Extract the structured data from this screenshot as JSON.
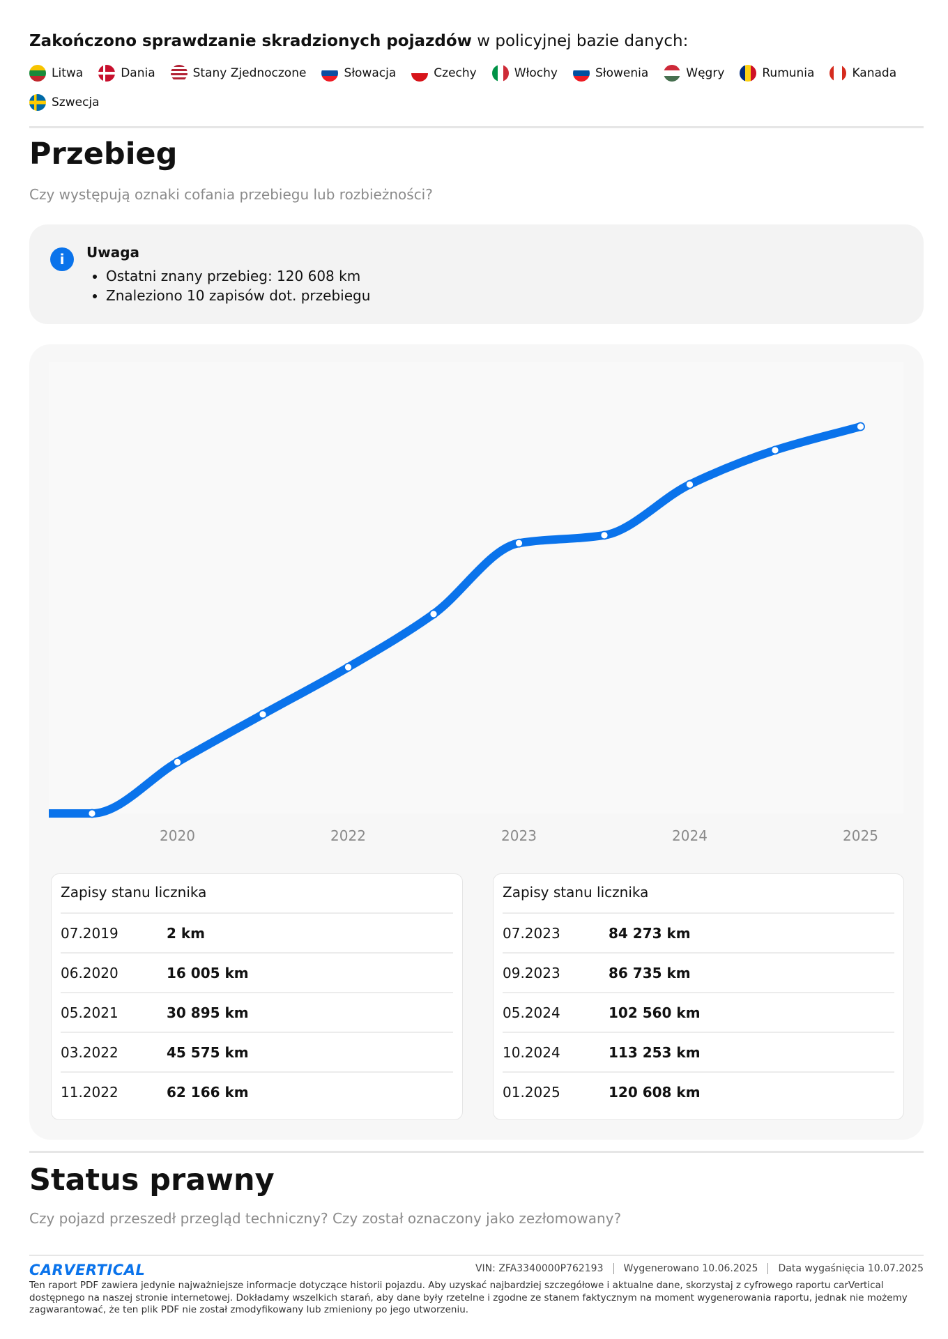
{
  "header": {
    "title_bold": "Zakończono sprawdzanie skradzionych pojazdów",
    "title_rest": " w policyjnej bazie danych:",
    "countries": [
      "Litwa",
      "Dania",
      "Stany Zjednoczone",
      "Słowacja",
      "Czechy",
      "Włochy",
      "Słowenia",
      "Węgry",
      "Rumunia",
      "Kanada",
      "Szwecja"
    ]
  },
  "mileage": {
    "title": "Przebieg",
    "subtitle": "Czy występują oznaki cofania przebiegu lub rozbieżności?",
    "note": {
      "title": "Uwaga",
      "items": [
        "Ostatni znany przebieg: 120 608 km",
        "Znaleziono 10 zapisów dot. przebiegu"
      ]
    }
  },
  "chart_data": {
    "type": "line",
    "categories": [
      null,
      "2020",
      null,
      "2022",
      null,
      "2023",
      null,
      "2024",
      null,
      "2025"
    ],
    "series": [
      {
        "color": "#0a73eb",
        "values": [
          2,
          16005,
          30895,
          45575,
          62166,
          84273,
          86735,
          102560,
          113253,
          120608
        ]
      }
    ]
  },
  "tables": [
    {
      "title": "Zapisy stanu licznika",
      "rows": [
        [
          "07.2019",
          "2 km"
        ],
        [
          "06.2020",
          "16 005 km"
        ],
        [
          "05.2021",
          "30 895 km"
        ],
        [
          "03.2022",
          "45 575 km"
        ],
        [
          "11.2022",
          "62 166 km"
        ]
      ]
    },
    {
      "title": "Zapisy stanu licznika",
      "rows": [
        [
          "07.2023",
          "84 273 km"
        ],
        [
          "09.2023",
          "86 735 km"
        ],
        [
          "05.2024",
          "102 560 km"
        ],
        [
          "10.2024",
          "113 253 km"
        ],
        [
          "01.2025",
          "120 608 km"
        ]
      ]
    }
  ],
  "legal": {
    "title": "Status prawny",
    "subtitle": "Czy pojazd przeszedł przegląd techniczny? Czy został oznaczony jako zezłomowany?"
  },
  "footer": {
    "logo": "CARVERTICAL",
    "vin": "VIN: ZFA3340000P762193",
    "generated": "Wygenerowano 10.06.2025",
    "expires": "Data wygaśnięcia 10.07.2025",
    "disclaimer": "Ten raport PDF zawiera jedynie najważniejsze informacje dotyczące historii pojazdu. Aby uzyskać najbardziej szczegółowe i aktualne dane, skorzystaj z cyfrowego raportu carVertical dostępnego na naszej stronie internetowej. Dokładamy wszelkich starań, aby dane były rzetelne i zgodne ze stanem faktycznym na moment wygenerowania raportu, jednak nie możemy zagwarantować, że ten plik PDF nie został zmodyfikowany lub zmieniony po jego utworzeniu."
  }
}
